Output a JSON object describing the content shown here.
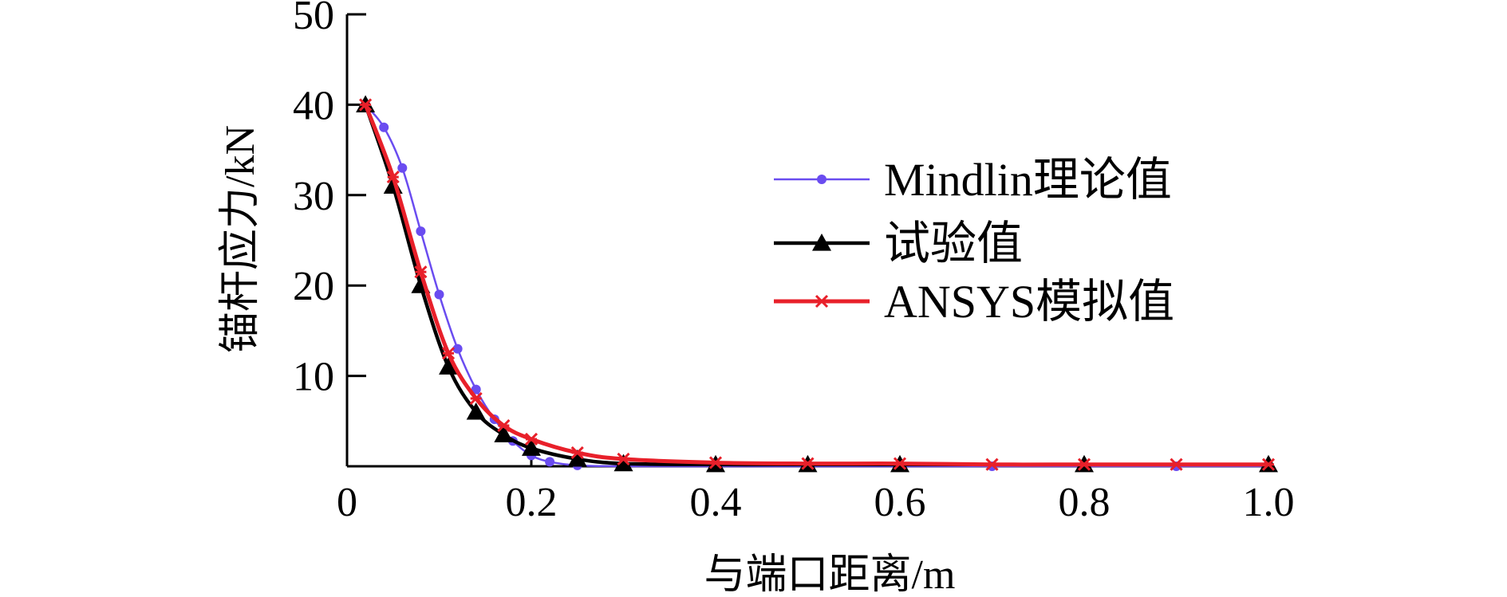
{
  "chart_data": {
    "type": "line",
    "xlabel": "与端口距离/m",
    "ylabel": "锚杆应力/kN",
    "xlim": [
      0,
      1.0
    ],
    "ylim": [
      0,
      50
    ],
    "x_ticks": [
      "0",
      "0.2",
      "0.4",
      "0.6",
      "0.8",
      "1.0"
    ],
    "y_ticks": [
      "10",
      "20",
      "30",
      "40",
      "50"
    ],
    "grid": false,
    "legend_position": "right",
    "series": [
      {
        "name": "Mindlin理论值",
        "color": "#6a4cf0",
        "marker": "dot",
        "x": [
          0.02,
          0.04,
          0.06,
          0.08,
          0.1,
          0.12,
          0.14,
          0.16,
          0.18,
          0.2,
          0.22,
          0.25,
          0.3,
          0.4,
          0.5,
          0.6,
          0.7,
          0.8,
          0.9,
          1.0
        ],
        "y": [
          40,
          37.5,
          33,
          26,
          19,
          13,
          8.5,
          5.2,
          2.8,
          1.2,
          0.5,
          0.1,
          0,
          0,
          0,
          0,
          0,
          0,
          0,
          0
        ]
      },
      {
        "name": "试验值",
        "color": "#000000",
        "marker": "triangle",
        "x": [
          0.02,
          0.05,
          0.08,
          0.11,
          0.14,
          0.17,
          0.2,
          0.25,
          0.3,
          0.4,
          0.5,
          0.6,
          0.8,
          1.0
        ],
        "y": [
          40,
          31,
          20,
          11,
          6,
          3.5,
          2,
          0.8,
          0.3,
          0.2,
          0.2,
          0.2,
          0.2,
          0.2
        ]
      },
      {
        "name": "ANSYS模拟值",
        "color": "#e8202a",
        "marker": "cross",
        "x": [
          0.02,
          0.05,
          0.08,
          0.11,
          0.14,
          0.17,
          0.2,
          0.25,
          0.3,
          0.4,
          0.5,
          0.6,
          0.7,
          0.8,
          0.9,
          1.0
        ],
        "y": [
          40,
          32,
          21.5,
          12.5,
          7.5,
          4.5,
          3,
          1.5,
          0.8,
          0.4,
          0.3,
          0.3,
          0.2,
          0.2,
          0.2,
          0.2
        ]
      }
    ]
  }
}
